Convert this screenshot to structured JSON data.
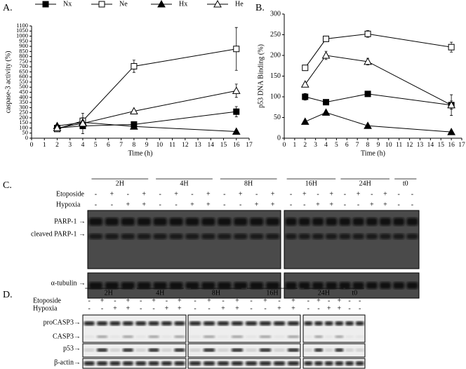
{
  "chart_data": [
    {
      "type": "line",
      "panel_label": "A.",
      "x_label": "Time (h)",
      "y_label": "caspase-3 activity (%)",
      "x": [
        2,
        4,
        8,
        16
      ],
      "xlim": [
        0,
        17
      ],
      "xticks": [
        0,
        1,
        2,
        3,
        4,
        5,
        6,
        7,
        8,
        9,
        10,
        11,
        12,
        13,
        14,
        15,
        16,
        17
      ],
      "ylim": [
        0,
        1100
      ],
      "yticks": [
        0,
        50,
        100,
        150,
        200,
        250,
        300,
        350,
        400,
        450,
        500,
        550,
        600,
        650,
        700,
        750,
        800,
        850,
        900,
        950,
        1000,
        1050,
        1100
      ],
      "legend": true,
      "series": [
        {
          "name": "Nx",
          "marker": "square",
          "filled": true,
          "color": "#000000",
          "values": [
            100,
            120,
            135,
            260
          ],
          "errors": [
            10,
            15,
            15,
            50
          ]
        },
        {
          "name": "Ne",
          "marker": "square",
          "filled": false,
          "color": "#000000",
          "values": [
            90,
            170,
            705,
            875
          ],
          "errors": [
            15,
            30,
            60,
            210
          ]
        },
        {
          "name": "Hx",
          "marker": "triangle",
          "filled": true,
          "color": "#000000",
          "values": [
            120,
            155,
            115,
            65
          ],
          "errors": [
            10,
            10,
            10,
            5
          ]
        },
        {
          "name": "He",
          "marker": "triangle",
          "filled": false,
          "color": "#000000",
          "values": [
            100,
            145,
            265,
            465
          ],
          "errors": [
            10,
            100,
            15,
            65
          ]
        }
      ]
    },
    {
      "type": "line",
      "panel_label": "B.",
      "x_label": "Time (h)",
      "y_label": "p53 DNA Binding (%)",
      "x": [
        2,
        4,
        8,
        16
      ],
      "xlim": [
        0,
        17
      ],
      "xticks": [
        0,
        1,
        2,
        3,
        4,
        5,
        6,
        7,
        8,
        9,
        10,
        11,
        12,
        13,
        14,
        15,
        16,
        17
      ],
      "ylim": [
        0,
        300
      ],
      "yticks": [
        0,
        50,
        100,
        150,
        200,
        250,
        300
      ],
      "legend": false,
      "series": [
        {
          "marker": "square",
          "filled": true,
          "color": "#000000",
          "values": [
            100,
            87,
            107,
            80
          ],
          "errors": [
            8,
            6,
            3,
            10
          ]
        },
        {
          "marker": "square",
          "filled": false,
          "color": "#000000",
          "values": [
            170,
            240,
            252,
            220
          ],
          "errors": [
            5,
            6,
            8,
            12
          ]
        },
        {
          "marker": "triangle",
          "filled": true,
          "color": "#000000",
          "values": [
            40,
            62,
            30,
            15
          ],
          "errors": [
            2,
            2,
            2,
            2
          ]
        },
        {
          "marker": "triangle",
          "filled": false,
          "color": "#000000",
          "values": [
            130,
            200,
            185,
            80
          ],
          "errors": [
            3,
            10,
            8,
            25
          ]
        }
      ]
    }
  ],
  "blots": [
    {
      "panel_label": "C.",
      "time_points": [
        "2H",
        "4H",
        "8H",
        "16H",
        "24H",
        "t0"
      ],
      "treatments": [
        {
          "label": "Etoposide",
          "signs": [
            "-",
            "+",
            "-",
            "+",
            "-",
            "+",
            "-",
            "+",
            "-",
            "+",
            "-",
            "+",
            "-",
            "+",
            "-",
            "+",
            "-",
            "+",
            "-",
            "+",
            "-",
            "-"
          ]
        },
        {
          "label": "Hypoxia",
          "signs": [
            "-",
            "-",
            "+",
            "+",
            "-",
            "-",
            "+",
            "+",
            "-",
            "-",
            "+",
            "+",
            "-",
            "-",
            "+",
            "+",
            "-",
            "-",
            "+",
            "+",
            "-",
            "-"
          ]
        }
      ],
      "bands": [
        "PARP-1 →",
        "cleaved PARP-1 →",
        "α-tubulin →"
      ]
    },
    {
      "panel_label": "D.",
      "time_points": [
        "2H",
        "4H",
        "8H",
        "16H",
        "24H",
        "t0"
      ],
      "treatments": [
        {
          "label": "Etoposide",
          "signs": [
            "-",
            "+",
            "-",
            "+",
            "-",
            "+",
            "-",
            "+",
            "-",
            "+",
            "-",
            "+",
            "-",
            "+",
            "-",
            "+",
            "-",
            "+",
            "-",
            "+",
            "-",
            "-"
          ]
        },
        {
          "label": "Hypoxia",
          "signs": [
            "-",
            "-",
            "+",
            "+",
            "-",
            "-",
            "+",
            "+",
            "-",
            "-",
            "+",
            "+",
            "-",
            "-",
            "+",
            "+",
            "-",
            "-",
            "+",
            "+",
            "-",
            "-"
          ]
        }
      ],
      "bands": [
        "proCASP3→",
        "CASP3→",
        "p53→",
        "β-actin→"
      ]
    }
  ]
}
